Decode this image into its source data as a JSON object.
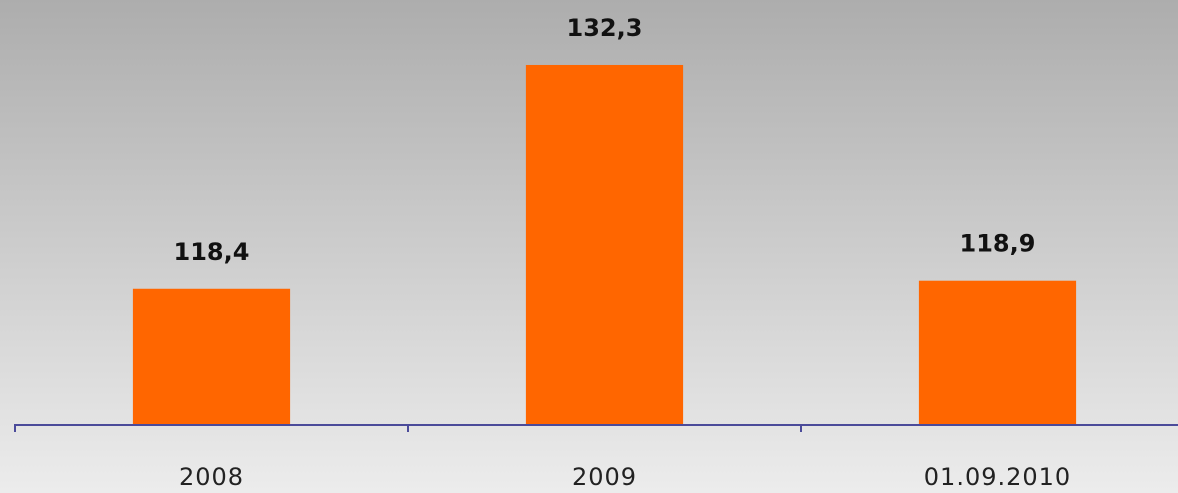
{
  "chart_data": {
    "type": "bar",
    "categories": [
      "2008",
      "2009",
      "01.09.2010"
    ],
    "values": [
      118.4,
      132.3,
      118.9
    ],
    "value_labels": [
      "118,4",
      "132,3",
      "118,9"
    ],
    "color": "#ff6600",
    "ylim": [
      110,
      135
    ]
  }
}
